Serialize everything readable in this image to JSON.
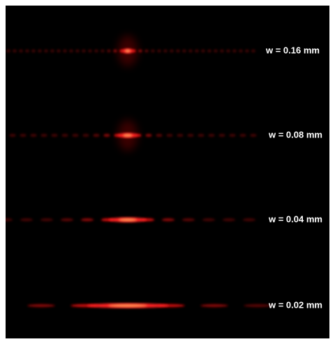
{
  "patterns": [
    {
      "label": "w = 0.16 mm"
    },
    {
      "label": "w = 0.08 mm"
    },
    {
      "label": "w = 0.04 mm"
    },
    {
      "label": "w = 0.02 mm"
    }
  ]
}
